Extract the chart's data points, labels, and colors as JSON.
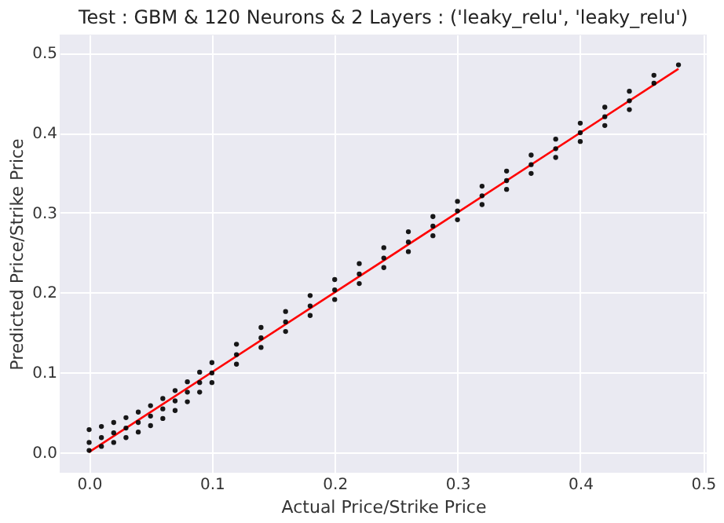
{
  "chart_data": {
    "type": "scatter",
    "title": "Test : GBM & 120 Neurons & 2 Layers : ('leaky_relu', 'leaky_relu')",
    "xlabel": "Actual Price/Strike Price",
    "ylabel": "Predicted Price/Strike Price",
    "xlim": [
      -0.024,
      0.503
    ],
    "ylim": [
      -0.026,
      0.523
    ],
    "xticks": [
      {
        "value": 0,
        "label": "0.0"
      },
      0.1,
      0.2,
      0.3,
      0.4,
      0.5
    ],
    "yticks": [
      {
        "value": 0,
        "label": "0.0"
      },
      0.1,
      0.2,
      0.3,
      0.4,
      0.5
    ],
    "grid": true,
    "marker": "circle",
    "series": [
      {
        "color": "#000000",
        "x": [
          0,
          0.01,
          0.02,
          0.03,
          0.04,
          0.05,
          0.06,
          0.07,
          0.08,
          0.09,
          0.1,
          0.12,
          0.14,
          0.16,
          0.18,
          0.2,
          0.22,
          0.24,
          0.26,
          0.28,
          0.3,
          0.32,
          0.34,
          0.36,
          0.38,
          0.4,
          0.42,
          0.44,
          0.46,
          0.48
        ],
        "values": [
          0.012,
          0.018,
          0.024,
          0.03,
          0.037,
          0.045,
          0.054,
          0.064,
          0.075,
          0.087,
          0.099,
          0.122,
          0.143,
          0.163,
          0.183,
          0.203,
          0.223,
          0.243,
          0.263,
          0.283,
          0.302,
          0.321,
          0.34,
          0.36,
          0.38,
          0.4,
          0.42,
          0.44,
          0.462,
          0.485
        ]
      },
      {
        "color": "#000000",
        "x": [
          0,
          0.01,
          0.02,
          0.03,
          0.04,
          0.05,
          0.06,
          0.07,
          0.08,
          0.09,
          0.1,
          0.12,
          0.14,
          0.16,
          0.18,
          0.2,
          0.22,
          0.24,
          0.26,
          0.28,
          0.3,
          0.32,
          0.34,
          0.36,
          0.38,
          0.4,
          0.42,
          0.44,
          0.46
        ],
        "values": [
          0.028,
          0.032,
          0.037,
          0.043,
          0.05,
          0.058,
          0.067,
          0.077,
          0.088,
          0.1,
          0.112,
          0.135,
          0.156,
          0.176,
          0.196,
          0.216,
          0.236,
          0.256,
          0.276,
          0.295,
          0.314,
          0.333,
          0.352,
          0.372,
          0.392,
          0.412,
          0.432,
          0.452,
          0.472
        ]
      },
      {
        "color": "#000000",
        "x": [
          0,
          0.01,
          0.02,
          0.03,
          0.04,
          0.05,
          0.06,
          0.07,
          0.08,
          0.09,
          0.1,
          0.12,
          0.14,
          0.16,
          0.18,
          0.2,
          0.22,
          0.24,
          0.26,
          0.28,
          0.3,
          0.32,
          0.34,
          0.36,
          0.38,
          0.4,
          0.42,
          0.44
        ],
        "values": [
          0.002,
          0.007,
          0.012,
          0.018,
          0.025,
          0.033,
          0.042,
          0.052,
          0.063,
          0.075,
          0.087,
          0.11,
          0.131,
          0.151,
          0.171,
          0.191,
          0.211,
          0.231,
          0.251,
          0.271,
          0.291,
          0.31,
          0.329,
          0.349,
          0.369,
          0.389,
          0.409,
          0.429
        ]
      },
      {
        "type": "line",
        "marker": "none",
        "color": "#ff0000",
        "x": [
          0,
          0.48
        ],
        "values": [
          0,
          0.48
        ]
      }
    ]
  }
}
